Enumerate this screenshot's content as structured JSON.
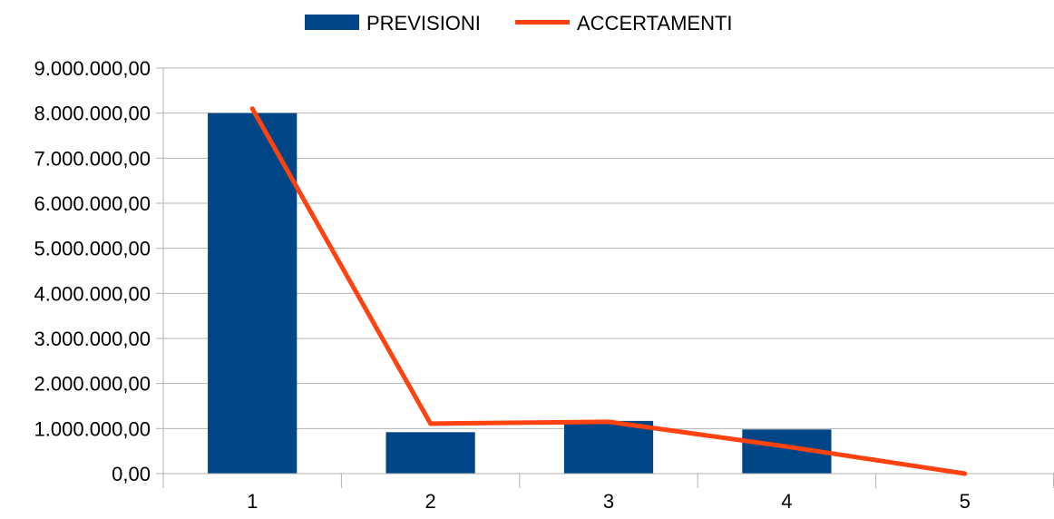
{
  "chart_data": {
    "type": "bar",
    "categories": [
      "1",
      "2",
      "3",
      "4",
      "5"
    ],
    "series": [
      {
        "name": "PREVISIONI",
        "type": "bar",
        "color": "#004586",
        "values": [
          8000000,
          920000,
          1170000,
          980000,
          0
        ]
      },
      {
        "name": "ACCERTAMENTI",
        "type": "line",
        "color": "#ff420e",
        "values": [
          8100000,
          1110000,
          1150000,
          600000,
          0
        ]
      }
    ],
    "ylim": [
      0,
      9000000
    ],
    "yticks": [
      {
        "value": 0,
        "label": "0,00"
      },
      {
        "value": 1000000,
        "label": "1.000.000,00"
      },
      {
        "value": 2000000,
        "label": "2.000.000,00"
      },
      {
        "value": 3000000,
        "label": "3.000.000,00"
      },
      {
        "value": 4000000,
        "label": "4.000.000,00"
      },
      {
        "value": 5000000,
        "label": "5.000.000,00"
      },
      {
        "value": 6000000,
        "label": "6.000.000,00"
      },
      {
        "value": 7000000,
        "label": "7.000.000,00"
      },
      {
        "value": 8000000,
        "label": "8.000.000,00"
      },
      {
        "value": 9000000,
        "label": "9.000.000,00"
      }
    ],
    "grid": "horizontal",
    "legend_position": "top-center",
    "title": "",
    "xlabel": "",
    "ylabel": ""
  }
}
